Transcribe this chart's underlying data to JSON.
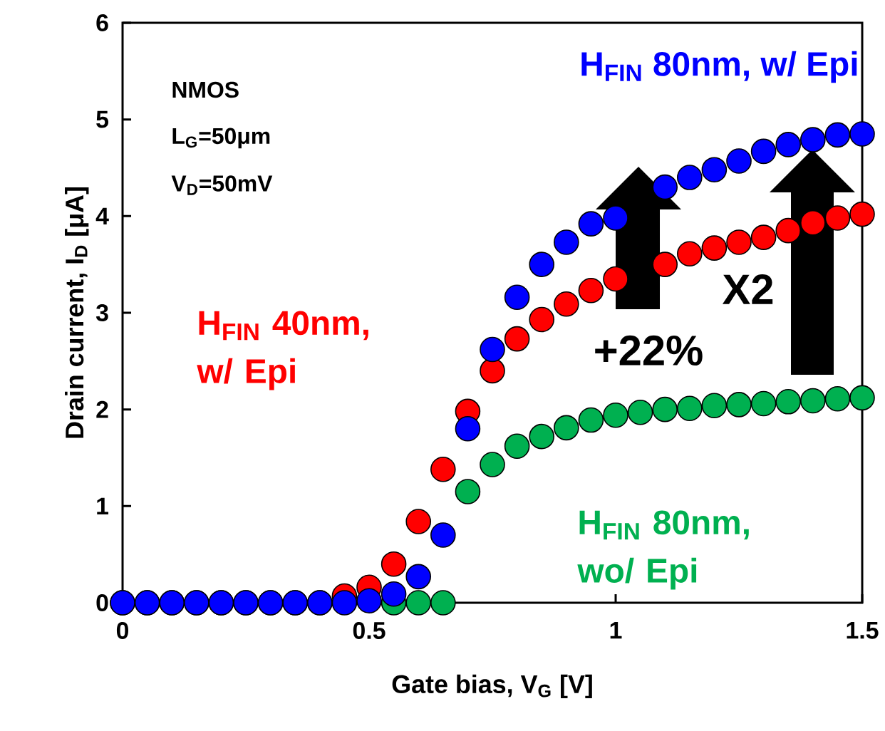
{
  "chart_data": {
    "type": "scatter",
    "xlabel": "Gate bias, V$_{G}$ [V]",
    "ylabel": "Drain current, I$_{D}$ [μA]",
    "x": [
      0,
      0.05,
      0.1,
      0.15,
      0.2,
      0.25,
      0.3,
      0.35,
      0.4,
      0.45,
      0.5,
      0.55,
      0.6,
      0.65,
      0.7,
      0.75,
      0.8,
      0.85,
      0.9,
      0.95,
      1.0,
      1.05,
      1.1,
      1.15,
      1.2,
      1.25,
      1.3,
      1.35,
      1.4,
      1.45,
      1.5
    ],
    "series": [
      {
        "name": "H$_{FIN}$ 80nm, wo/ Epi",
        "color": "#00b050",
        "values": [
          null,
          null,
          null,
          null,
          null,
          null,
          null,
          null,
          null,
          null,
          null,
          0,
          0,
          0,
          1.15,
          1.43,
          1.62,
          1.72,
          1.81,
          1.89,
          1.94,
          1.97,
          2.0,
          2.01,
          2.04,
          2.05,
          2.06,
          2.08,
          2.09,
          2.11,
          2.12
        ]
      },
      {
        "name": "H$_{FIN}$ 40nm, w/ Epi",
        "color": "#ff0000",
        "values": [
          0,
          0,
          0,
          0,
          0,
          0,
          0,
          0,
          0,
          0.07,
          0.16,
          0.4,
          0.84,
          1.38,
          1.98,
          2.4,
          2.73,
          2.93,
          3.09,
          3.23,
          3.35,
          null,
          3.5,
          3.61,
          3.67,
          3.73,
          3.78,
          3.85,
          3.93,
          3.98,
          4.02
        ]
      },
      {
        "name": "H$_{FIN}$ 80nm, w/ Epi",
        "color": "#0000ff",
        "values": [
          0,
          0,
          0,
          0,
          0,
          0,
          0,
          0,
          0,
          0,
          0.02,
          0.09,
          0.27,
          0.7,
          1.8,
          2.62,
          3.16,
          3.5,
          3.73,
          3.92,
          3.98,
          null,
          4.3,
          4.4,
          4.48,
          4.57,
          4.67,
          4.74,
          4.79,
          4.84,
          4.85
        ]
      }
    ],
    "xlim": [
      0,
      1.5
    ],
    "ylim": [
      0,
      6
    ],
    "xticks": [
      0,
      0.5,
      1,
      1.5
    ],
    "yticks": [
      0,
      1,
      2,
      3,
      4,
      5,
      6
    ],
    "marker": "circle",
    "grid": false,
    "legend": false,
    "annotations": [
      "NMOS",
      "L$_{G}$=50μm",
      "V$_{D}$=50mV",
      "+22%",
      "X2"
    ]
  }
}
